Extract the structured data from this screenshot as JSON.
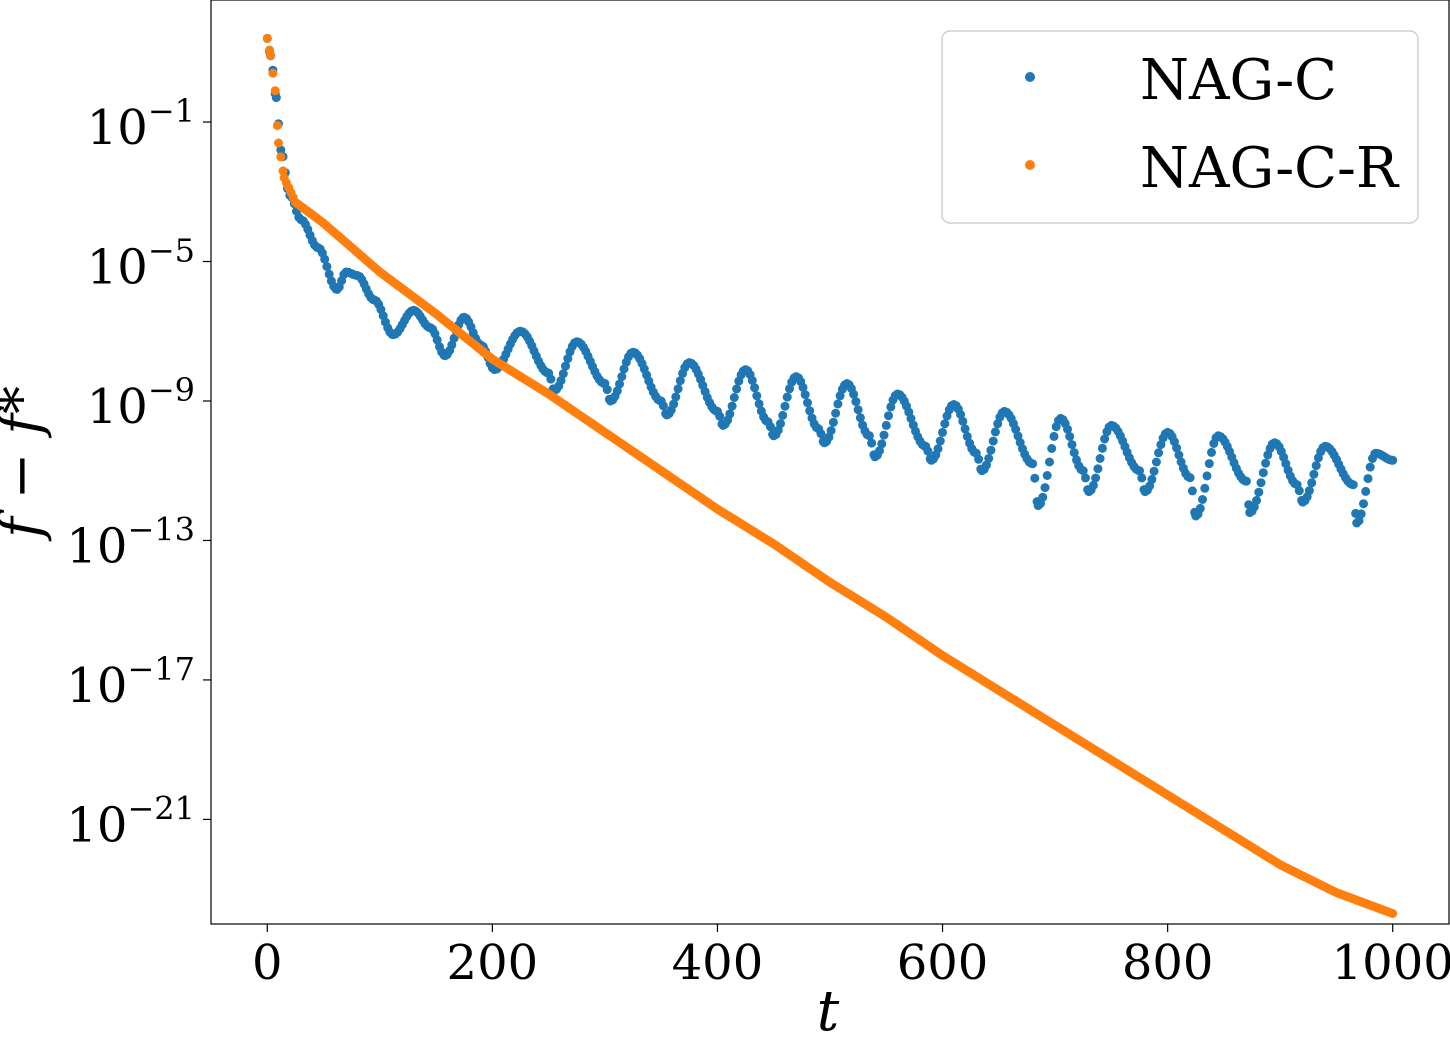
{
  "chart_data": {
    "type": "scatter",
    "title": "",
    "xlabel": "t",
    "ylabel": "f − f*",
    "xlim": [
      -50,
      1050
    ],
    "ylog": true,
    "ylim_exponent": [
      -24.0,
      2.5
    ],
    "x_ticks": [
      0,
      200,
      400,
      600,
      800,
      1000
    ],
    "x_tick_labels": [
      "0",
      "200",
      "400",
      "600",
      "800",
      "1000"
    ],
    "y_ticks_exponent": [
      -1,
      -5,
      -9,
      -13,
      -17,
      -21
    ],
    "y_tick_labels": [
      {
        "base": "10",
        "exp": "−1"
      },
      {
        "base": "10",
        "exp": "−5"
      },
      {
        "base": "10",
        "exp": "−9"
      },
      {
        "base": "10",
        "exp": "−13"
      },
      {
        "base": "10",
        "exp": "−17"
      },
      {
        "base": "10",
        "exp": "−21"
      }
    ],
    "grid": false,
    "legend_position": "top-right",
    "series": [
      {
        "name": "NAG-C",
        "color": "#1f77b4",
        "description_points_log10": [
          [
            0,
            1.4
          ],
          [
            3,
            0.9
          ],
          [
            8,
            -0.3
          ],
          [
            12,
            -1.8
          ],
          [
            20,
            -3.1
          ],
          [
            30,
            -3.8
          ],
          [
            45,
            -4.6
          ],
          [
            62,
            -5.8
          ],
          [
            70,
            -5.3
          ],
          [
            80,
            -5.4
          ],
          [
            95,
            -6.1
          ],
          [
            112,
            -7.1
          ],
          [
            130,
            -6.4
          ],
          [
            145,
            -6.9
          ],
          [
            158,
            -7.7
          ],
          [
            175,
            -6.6
          ],
          [
            190,
            -7.4
          ],
          [
            202,
            -8.1
          ],
          [
            225,
            -7.0
          ],
          [
            250,
            -8.2
          ],
          [
            255,
            -8.7
          ],
          [
            275,
            -7.3
          ],
          [
            300,
            -8.5
          ],
          [
            305,
            -9.0
          ],
          [
            325,
            -7.6
          ],
          [
            350,
            -9.0
          ],
          [
            355,
            -9.4
          ],
          [
            375,
            -7.9
          ],
          [
            400,
            -9.3
          ],
          [
            405,
            -9.7
          ],
          [
            425,
            -8.1
          ],
          [
            445,
            -9.6
          ],
          [
            450,
            -10.0
          ],
          [
            470,
            -8.3
          ],
          [
            490,
            -9.8
          ],
          [
            495,
            -10.2
          ],
          [
            515,
            -8.5
          ],
          [
            535,
            -10.0
          ],
          [
            540,
            -10.6
          ],
          [
            560,
            -8.8
          ],
          [
            585,
            -10.3
          ],
          [
            590,
            -10.7
          ],
          [
            610,
            -9.1
          ],
          [
            630,
            -10.5
          ],
          [
            635,
            -11.0
          ],
          [
            655,
            -9.3
          ],
          [
            680,
            -10.8
          ],
          [
            685,
            -12.0
          ],
          [
            705,
            -9.5
          ],
          [
            725,
            -11.0
          ],
          [
            730,
            -11.6
          ],
          [
            750,
            -9.7
          ],
          [
            775,
            -11.0
          ],
          [
            780,
            -11.6
          ],
          [
            800,
            -9.9
          ],
          [
            820,
            -11.2
          ],
          [
            825,
            -12.3
          ],
          [
            845,
            -10.0
          ],
          [
            870,
            -11.3
          ],
          [
            873,
            -12.2
          ],
          [
            895,
            -10.2
          ],
          [
            915,
            -11.4
          ],
          [
            920,
            -11.9
          ],
          [
            940,
            -10.3
          ],
          [
            965,
            -11.4
          ],
          [
            968,
            -12.5
          ],
          [
            985,
            -10.5
          ],
          [
            1000,
            -10.7
          ]
        ]
      },
      {
        "name": "NAG-C-R",
        "color": "#ff7f0e",
        "description_points_log10": [
          [
            0,
            1.4
          ],
          [
            3,
            0.9
          ],
          [
            7,
            -0.1
          ],
          [
            10,
            -1.6
          ],
          [
            15,
            -2.6
          ],
          [
            25,
            -3.3
          ],
          [
            50,
            -3.9
          ],
          [
            100,
            -5.3
          ],
          [
            150,
            -6.5
          ],
          [
            200,
            -7.8
          ],
          [
            250,
            -8.8
          ],
          [
            300,
            -9.9
          ],
          [
            350,
            -11.0
          ],
          [
            400,
            -12.1
          ],
          [
            450,
            -13.1
          ],
          [
            500,
            -14.2
          ],
          [
            550,
            -15.2
          ],
          [
            600,
            -16.3
          ],
          [
            650,
            -17.3
          ],
          [
            700,
            -18.3
          ],
          [
            750,
            -19.3
          ],
          [
            800,
            -20.3
          ],
          [
            850,
            -21.3
          ],
          [
            900,
            -22.3
          ],
          [
            950,
            -23.1
          ],
          [
            1000,
            -23.7
          ]
        ]
      }
    ]
  }
}
